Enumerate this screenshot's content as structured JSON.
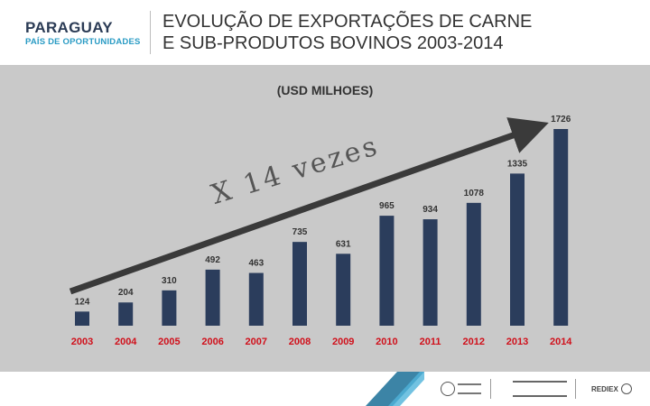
{
  "header": {
    "brand_name": "PARAGUAY",
    "brand_tagline": "PAÍS DE OPORTUNIDADES",
    "title": "EVOLUÇÃO DE EXPORTAÇÕES DE CARNE\nE SUB-PRODUTOS BOVINOS 2003-2014"
  },
  "colors": {
    "bar": "#2b3d5c",
    "year_label": "#d0101b",
    "arrow": "#3a3a3a",
    "background": "#c9c9c9",
    "footer_accent": "#1a6e96"
  },
  "chart_data": {
    "type": "bar",
    "unit_label": "(USD MILHOES)",
    "annotation": "X 14 vezes",
    "categories": [
      "2003",
      "2004",
      "2005",
      "2006",
      "2007",
      "2008",
      "2009",
      "2010",
      "2011",
      "2012",
      "2013",
      "2014"
    ],
    "values": [
      124,
      204,
      310,
      492,
      463,
      735,
      631,
      965,
      934,
      1078,
      1335,
      1726
    ],
    "ylim": [
      0,
      1726
    ],
    "grid": false,
    "legend": "none"
  },
  "footer": {
    "logos": [
      "REDIEX"
    ]
  }
}
